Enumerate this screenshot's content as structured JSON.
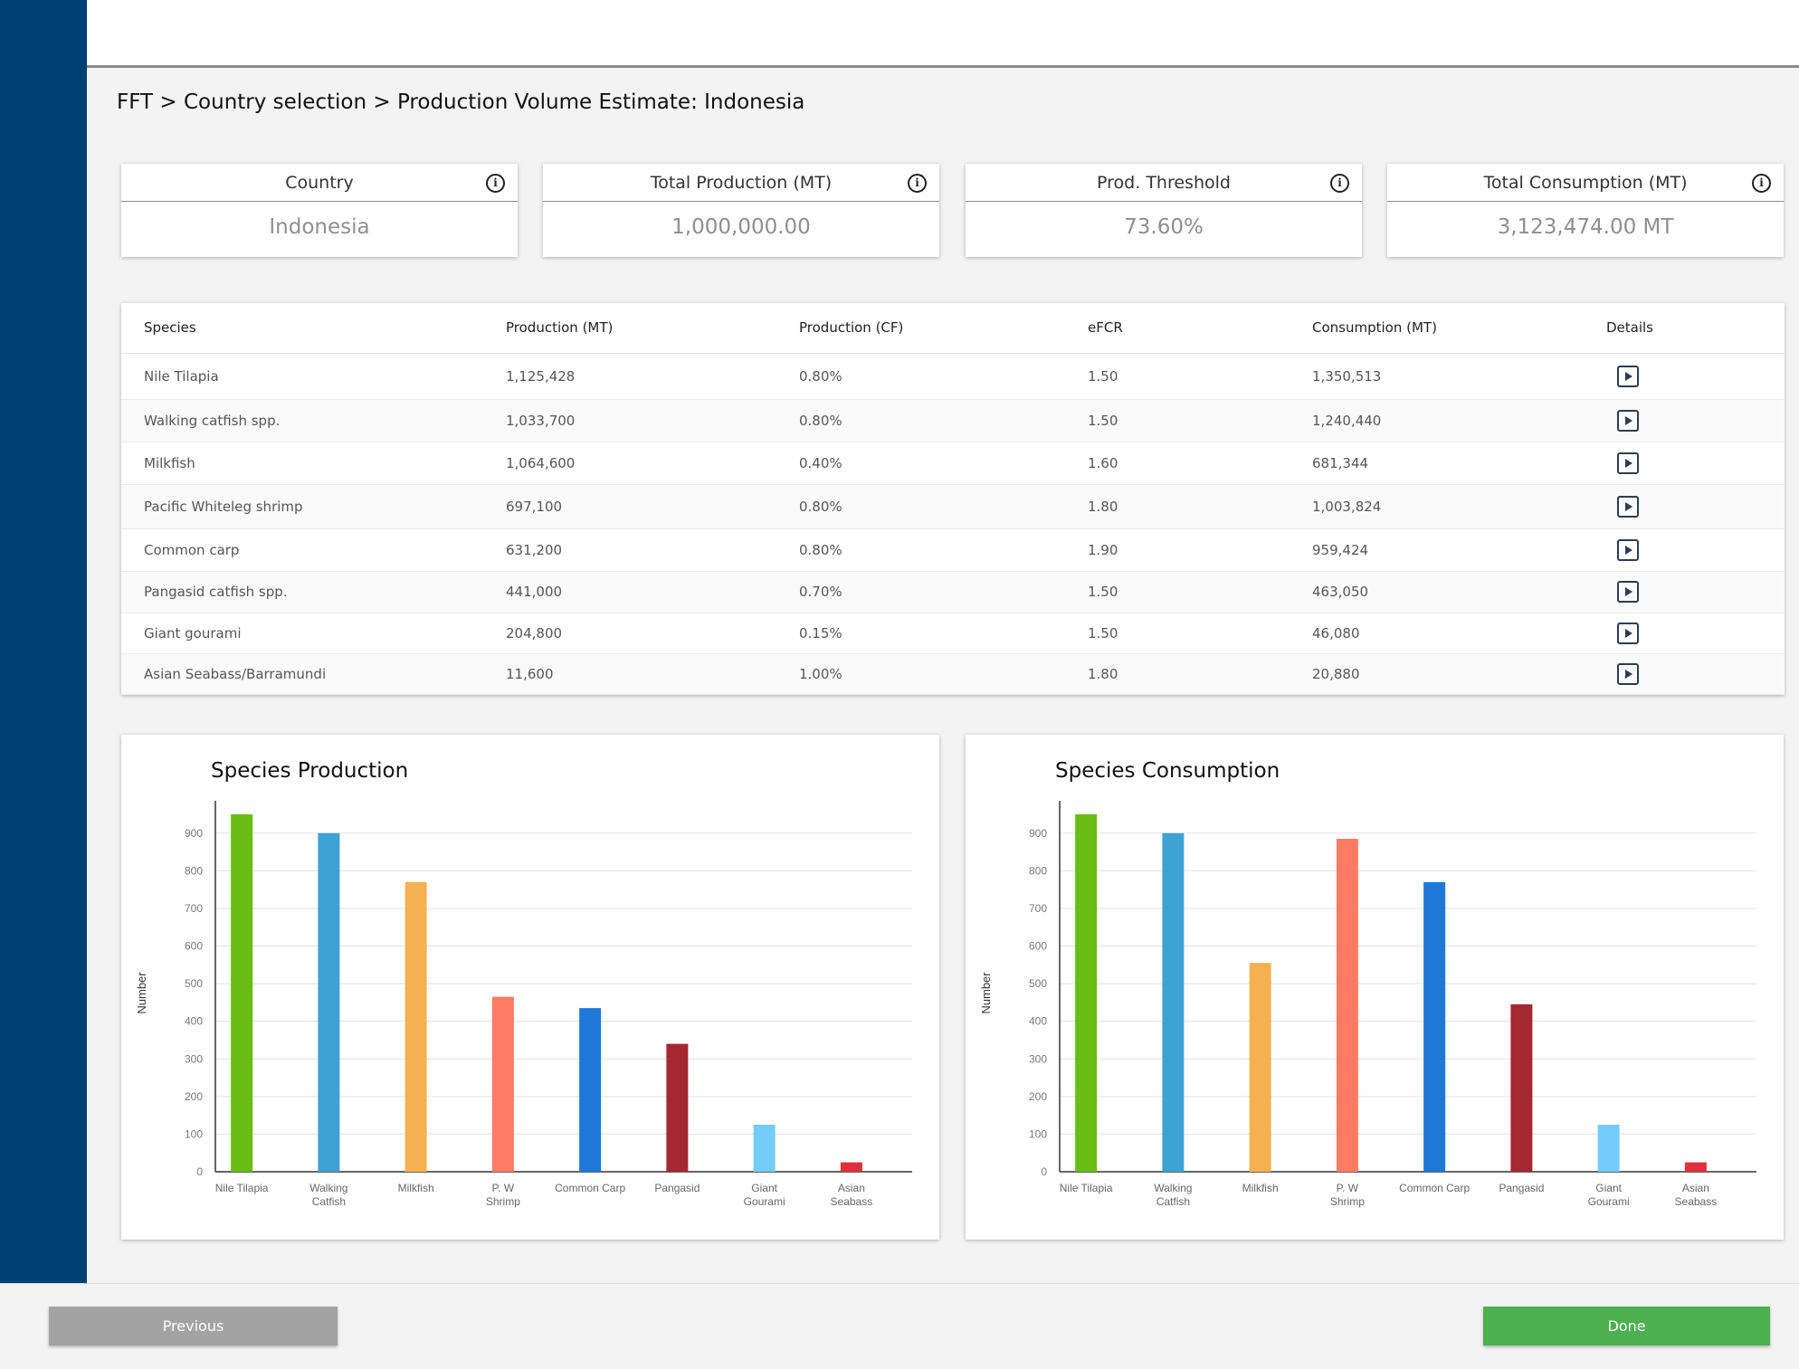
{
  "breadcrumb": "FFT > Country selection > Production Volume Estimate: Indonesia",
  "kpis": [
    {
      "label": "Country",
      "value": "Indonesia"
    },
    {
      "label": "Total Production (MT)",
      "value": "1,000,000.00"
    },
    {
      "label": "Prod. Threshold",
      "value": "73.60%"
    },
    {
      "label": "Total Consumption (MT)",
      "value": "3,123,474.00 MT"
    }
  ],
  "table": {
    "headers": {
      "species": "Species",
      "production": "Production (MT)",
      "cf": "Production (CF)",
      "efcr": "eFCR",
      "consumption": "Consumption (MT)",
      "details": "Details"
    },
    "rows": [
      {
        "species": "Nile Tilapia",
        "production": "1,125,428",
        "cf": "0.80%",
        "efcr": "1.50",
        "consumption": "1,350,513"
      },
      {
        "species": "Walking catfish spp.",
        "production": "1,033,700",
        "cf": "0.80%",
        "efcr": "1.50",
        "consumption": "1,240,440"
      },
      {
        "species": "Milkfish",
        "production": "1,064,600",
        "cf": "0.40%",
        "efcr": "1.60",
        "consumption": "681,344"
      },
      {
        "species": "Pacific Whiteleg shrimp",
        "production": "697,100",
        "cf": "0.80%",
        "efcr": "1.80",
        "consumption": "1,003,824"
      },
      {
        "species": "Common carp",
        "production": "631,200",
        "cf": "0.80%",
        "efcr": "1.90",
        "consumption": "959,424"
      },
      {
        "species": "Pangasid catfish spp.",
        "production": "441,000",
        "cf": "0.70%",
        "efcr": "1.50",
        "consumption": "463,050"
      },
      {
        "species": "Giant gourami",
        "production": "204,800",
        "cf": "0.15%",
        "efcr": "1.50",
        "consumption": "46,080"
      },
      {
        "species": "Asian Seabass/Barramundi",
        "production": "11,600",
        "cf": "1.00%",
        "efcr": "1.80",
        "consumption": "20,880"
      }
    ]
  },
  "chart_data": [
    {
      "type": "bar",
      "title": "Species Production",
      "ylabel": "Number",
      "xlabel": "",
      "ylim": [
        0,
        950
      ],
      "yticks": [
        0,
        100,
        200,
        300,
        400,
        500,
        600,
        700,
        800,
        900
      ],
      "grid": true,
      "categories": [
        "Nile Tilapia",
        "Walking Catfish",
        "Milkfish",
        "P. W Shrimp",
        "Common Carp",
        "Pangasid",
        "Giant Gourami",
        "Asian Seabass"
      ],
      "category_labels": [
        [
          "Nile Tilapia"
        ],
        [
          "Walking",
          "Catfish"
        ],
        [
          "Milkfish"
        ],
        [
          "P. W",
          "Shrimp"
        ],
        [
          "Common Carp"
        ],
        [
          "Pangasid"
        ],
        [
          "Giant",
          "Gourami"
        ],
        [
          "Asian",
          "Seabass"
        ]
      ],
      "values": [
        950,
        900,
        770,
        465,
        435,
        340,
        125,
        25
      ],
      "colors": [
        "#6abd12",
        "#3fa2d5",
        "#f5b151",
        "#fd7c63",
        "#1e78d8",
        "#a52731",
        "#74ccfb",
        "#e0303c"
      ]
    },
    {
      "type": "bar",
      "title": "Species Consumption",
      "ylabel": "Number",
      "xlabel": "",
      "ylim": [
        0,
        950
      ],
      "yticks": [
        0,
        100,
        200,
        300,
        400,
        500,
        600,
        700,
        800,
        900
      ],
      "grid": true,
      "categories": [
        "Nile Tilapia",
        "Walking Catfish",
        "Milkfish",
        "P. W Shrimp",
        "Common Carp",
        "Pangasid",
        "Giant Gourami",
        "Asian Seabass"
      ],
      "category_labels": [
        [
          "Nile Tilapia"
        ],
        [
          "Walking",
          "Catfish"
        ],
        [
          "Milkfish"
        ],
        [
          "P. W",
          "Shrimp"
        ],
        [
          "Common Carp"
        ],
        [
          "Pangasid"
        ],
        [
          "Giant",
          "Gourami"
        ],
        [
          "Asian",
          "Seabass"
        ]
      ],
      "values": [
        950,
        900,
        555,
        885,
        770,
        445,
        125,
        25
      ],
      "colors": [
        "#6abd12",
        "#3fa2d5",
        "#f5b151",
        "#fd7c63",
        "#1e78d8",
        "#a52731",
        "#74ccfb",
        "#e0303c"
      ]
    }
  ],
  "footer": {
    "previous_label": "Previous",
    "done_label": "Done"
  }
}
